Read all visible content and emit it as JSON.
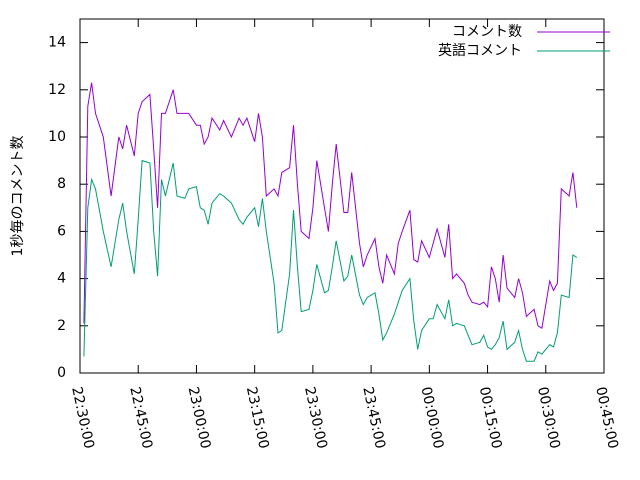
{
  "chart_data": {
    "type": "line",
    "y_label": "1秒毎のコメント数",
    "x": [
      "22:31:00",
      "22:32:00",
      "22:33:00",
      "22:34:00",
      "22:36:00",
      "22:38:00",
      "22:40:00",
      "22:41:00",
      "22:42:00",
      "22:44:00",
      "22:45:00",
      "22:46:00",
      "22:48:00",
      "22:49:00",
      "22:50:00",
      "22:51:00",
      "22:52:00",
      "22:54:00",
      "22:55:00",
      "22:57:00",
      "22:58:00",
      "23:00:00",
      "23:01:00",
      "23:02:00",
      "23:03:00",
      "23:04:00",
      "23:06:00",
      "23:07:00",
      "23:09:00",
      "23:11:00",
      "23:12:00",
      "23:13:00",
      "23:15:00",
      "23:16:00",
      "23:17:00",
      "23:18:00",
      "23:20:00",
      "23:21:00",
      "23:22:00",
      "23:24:00",
      "23:25:00",
      "23:26:00",
      "23:27:00",
      "23:29:00",
      "23:30:00",
      "23:31:00",
      "23:33:00",
      "23:34:00",
      "23:35:00",
      "23:36:00",
      "23:38:00",
      "23:39:00",
      "23:40:00",
      "23:42:00",
      "23:43:00",
      "23:44:00",
      "23:46:00",
      "23:47:00",
      "23:48:00",
      "23:49:00",
      "23:51:00",
      "23:52:00",
      "23:53:00",
      "23:55:00",
      "23:56:00",
      "23:57:00",
      "23:58:00",
      "00:00:00",
      "00:01:00",
      "00:02:00",
      "00:04:00",
      "00:05:00",
      "00:06:00",
      "00:07:00",
      "00:09:00",
      "00:10:00",
      "00:11:00",
      "00:13:00",
      "00:14:00",
      "00:15:00",
      "00:16:00",
      "00:17:00",
      "00:18:00",
      "00:19:00",
      "00:20:00",
      "00:22:00",
      "00:23:00",
      "00:24:00",
      "00:25:00",
      "00:27:00",
      "00:28:00",
      "00:29:00",
      "00:31:00",
      "00:32:00",
      "00:33:00",
      "00:34:00",
      "00:36:00",
      "00:37:00",
      "00:38:00"
    ],
    "series": [
      {
        "name": "コメント数",
        "color": "#9400d3",
        "values": [
          2.1,
          11.3,
          12.3,
          11,
          10,
          7.5,
          10,
          9.5,
          10.5,
          9.2,
          11,
          11.5,
          11.8,
          9.5,
          7,
          11,
          11,
          12,
          11,
          11,
          11,
          10.5,
          10.5,
          9.7,
          10,
          10.8,
          10.3,
          10.7,
          10,
          10.8,
          10.5,
          10.8,
          9.8,
          11,
          10,
          7.5,
          7.8,
          7.5,
          8.5,
          8.7,
          10.5,
          8,
          6,
          5.7,
          7,
          9,
          7,
          6,
          8,
          9.7,
          6.8,
          6.8,
          8.5,
          5.5,
          4.5,
          5,
          5.7,
          4.5,
          3.8,
          5,
          4.2,
          5.5,
          6,
          6.9,
          4.8,
          4.7,
          5.6,
          4.9,
          5.5,
          6.1,
          4.9,
          6.3,
          4,
          4.2,
          3.8,
          3.3,
          3,
          2.9,
          3,
          2.8,
          4.5,
          4,
          3,
          5,
          3.6,
          3.2,
          4,
          3.4,
          2.4,
          2.7,
          2,
          1.9,
          3.9,
          3.5,
          3.8,
          7.8,
          7.5,
          8.5,
          7
        ]
      },
      {
        "name": "英語コメント",
        "color": "#009e73",
        "values": [
          0.7,
          7,
          8.2,
          7.8,
          6,
          4.5,
          6.5,
          7.2,
          6,
          4.2,
          6.5,
          9,
          8.9,
          6,
          4.1,
          8.2,
          7.5,
          8.9,
          7.5,
          7.4,
          7.8,
          7.9,
          7,
          6.9,
          6.3,
          7.2,
          7.6,
          7.5,
          7.2,
          6.5,
          6.3,
          6.6,
          7,
          6.2,
          7.4,
          6,
          3.8,
          1.7,
          1.8,
          4.2,
          6.9,
          4.5,
          2.6,
          2.7,
          3.5,
          4.6,
          3.4,
          3.5,
          4.5,
          5.6,
          3.9,
          4.1,
          5,
          3.3,
          2.9,
          3.2,
          3.4,
          2.5,
          1.4,
          1.7,
          2.5,
          3,
          3.5,
          4,
          2.2,
          1,
          1.8,
          2.3,
          2.3,
          2.9,
          2.3,
          3.1,
          2,
          2.1,
          2,
          1.6,
          1.2,
          1.3,
          1.6,
          1.1,
          1,
          1.2,
          1.5,
          2.2,
          1,
          1.3,
          1.8,
          1,
          0.5,
          0.5,
          0.9,
          0.8,
          1.2,
          1.1,
          1.7,
          3.3,
          3.2,
          5,
          4.9
        ]
      }
    ],
    "xlim": [
      "22:30:00",
      "00:45:00"
    ],
    "xticks": [
      "22:30:00",
      "22:45:00",
      "23:00:00",
      "23:15:00",
      "23:30:00",
      "23:45:00",
      "00:00:00",
      "00:15:00",
      "00:30:00",
      "00:45:00"
    ],
    "ylim": [
      0,
      15
    ],
    "yticks": [
      0,
      2,
      4,
      6,
      8,
      10,
      12,
      14
    ],
    "legend": "top-right"
  }
}
